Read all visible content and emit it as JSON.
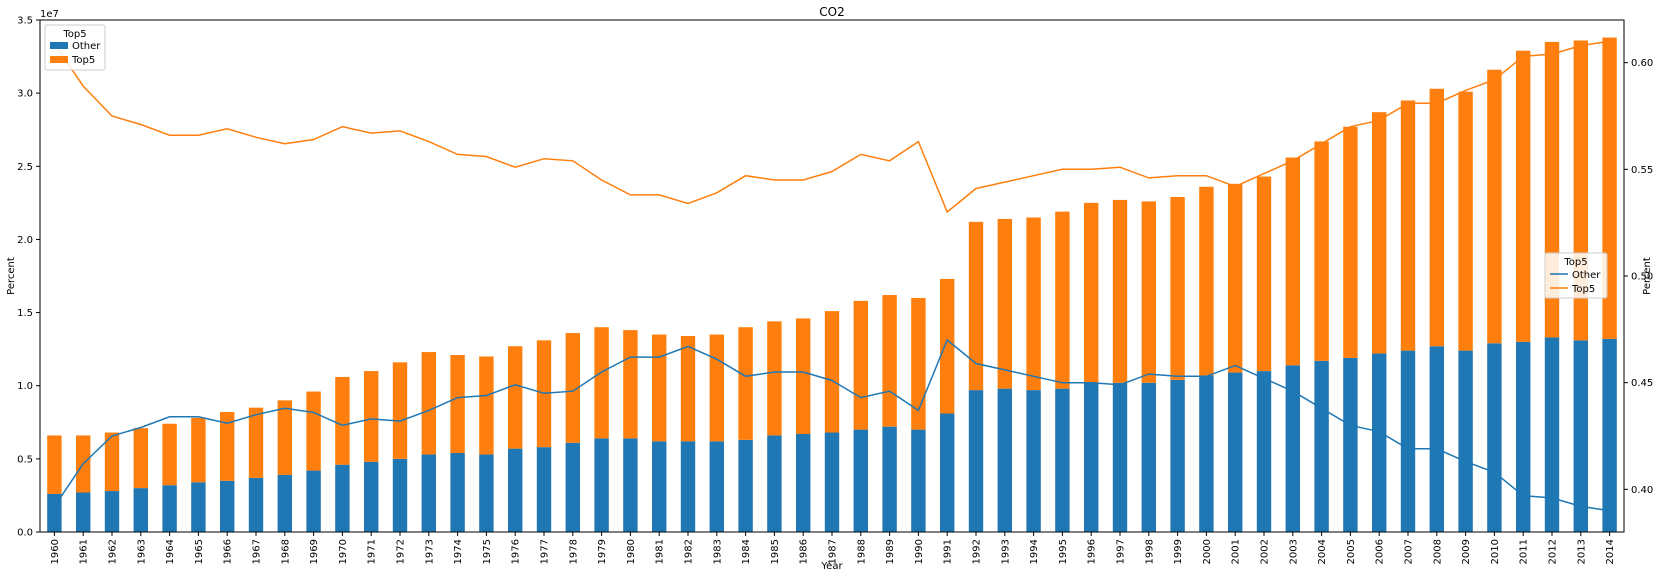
{
  "chart_data": {
    "type": "bar",
    "title": "CO2",
    "xlabel": "Year",
    "ylabel_left": "Percent",
    "ylabel_right": "Percent",
    "y_offset_text": "1e7",
    "bars": {
      "stacked": true,
      "ylim": [
        0,
        3.5
      ],
      "yticks": [
        0.0,
        0.5,
        1.0,
        1.5,
        2.0,
        2.5,
        3.0,
        3.5
      ],
      "legend": {
        "title": "Top5",
        "position": "upper-left"
      },
      "series": [
        {
          "name": "Other",
          "color": "#1f77b4",
          "values": [
            0.26,
            0.27,
            0.28,
            0.3,
            0.32,
            0.34,
            0.35,
            0.37,
            0.39,
            0.42,
            0.46,
            0.48,
            0.5,
            0.53,
            0.54,
            0.53,
            0.57,
            0.58,
            0.61,
            0.64,
            0.64,
            0.62,
            0.62,
            0.62,
            0.63,
            0.66,
            0.67,
            0.68,
            0.7,
            0.72,
            0.7,
            0.81,
            0.97,
            0.98,
            0.97,
            0.98,
            1.02,
            1.02,
            1.02,
            1.04,
            1.07,
            1.09,
            1.1,
            1.14,
            1.17,
            1.19,
            1.22,
            1.24,
            1.27,
            1.24,
            1.29,
            1.3,
            1.33,
            1.31,
            1.32
          ]
        },
        {
          "name": "Top5",
          "color": "#ff7f0e",
          "values": [
            0.4,
            0.39,
            0.4,
            0.41,
            0.42,
            0.44,
            0.47,
            0.48,
            0.51,
            0.54,
            0.6,
            0.62,
            0.66,
            0.7,
            0.67,
            0.67,
            0.7,
            0.73,
            0.75,
            0.76,
            0.74,
            0.73,
            0.72,
            0.73,
            0.77,
            0.78,
            0.79,
            0.83,
            0.88,
            0.9,
            0.9,
            0.92,
            1.15,
            1.16,
            1.18,
            1.21,
            1.23,
            1.25,
            1.24,
            1.25,
            1.29,
            1.29,
            1.33,
            1.42,
            1.5,
            1.58,
            1.65,
            1.71,
            1.76,
            1.77,
            1.87,
            1.99,
            2.02,
            2.05,
            2.06
          ]
        }
      ]
    },
    "lines": {
      "ylim": [
        0.38,
        0.62
      ],
      "yticks": [
        0.4,
        0.45,
        0.5,
        0.55,
        0.6
      ],
      "legend": {
        "title": "Top5",
        "position": "center-right"
      },
      "series": [
        {
          "name": "Other",
          "color": "#1f77b4",
          "values": [
            0.392,
            0.412,
            0.425,
            0.429,
            0.434,
            0.434,
            0.431,
            0.435,
            0.438,
            0.436,
            0.43,
            0.433,
            0.432,
            0.437,
            0.443,
            0.444,
            0.449,
            0.445,
            0.446,
            0.455,
            0.462,
            0.462,
            0.467,
            0.461,
            0.453,
            0.455,
            0.455,
            0.451,
            0.443,
            0.446,
            0.437,
            0.47,
            0.459,
            0.456,
            0.453,
            0.45,
            0.45,
            0.449,
            0.454,
            0.453,
            0.453,
            0.458,
            0.452,
            0.446,
            0.438,
            0.43,
            0.427,
            0.419,
            0.419,
            0.413,
            0.408,
            0.397,
            0.396,
            0.392,
            0.39
          ]
        },
        {
          "name": "Top5",
          "color": "#ff7f0e",
          "values": [
            0.609,
            0.589,
            0.575,
            0.571,
            0.566,
            0.566,
            0.569,
            0.565,
            0.562,
            0.564,
            0.57,
            0.567,
            0.568,
            0.563,
            0.557,
            0.556,
            0.551,
            0.555,
            0.554,
            0.545,
            0.538,
            0.538,
            0.534,
            0.539,
            0.547,
            0.545,
            0.545,
            0.549,
            0.557,
            0.554,
            0.563,
            0.53,
            0.541,
            0.544,
            0.547,
            0.55,
            0.55,
            0.551,
            0.546,
            0.547,
            0.547,
            0.542,
            0.548,
            0.554,
            0.562,
            0.57,
            0.573,
            0.581,
            0.581,
            0.587,
            0.592,
            0.603,
            0.604,
            0.608,
            0.61
          ]
        }
      ]
    },
    "categories": [
      "1960",
      "1961",
      "1962",
      "1963",
      "1964",
      "1965",
      "1966",
      "1967",
      "1968",
      "1969",
      "1970",
      "1971",
      "1972",
      "1973",
      "1974",
      "1975",
      "1976",
      "1977",
      "1978",
      "1979",
      "1980",
      "1981",
      "1982",
      "1983",
      "1984",
      "1985",
      "1986",
      "1987",
      "1988",
      "1989",
      "1990",
      "1991",
      "1992",
      "1993",
      "1994",
      "1995",
      "1996",
      "1997",
      "1998",
      "1999",
      "2000",
      "2001",
      "2002",
      "2003",
      "2004",
      "2005",
      "2006",
      "2007",
      "2008",
      "2009",
      "2010",
      "2011",
      "2012",
      "2013",
      "2014"
    ],
    "grid": false
  }
}
